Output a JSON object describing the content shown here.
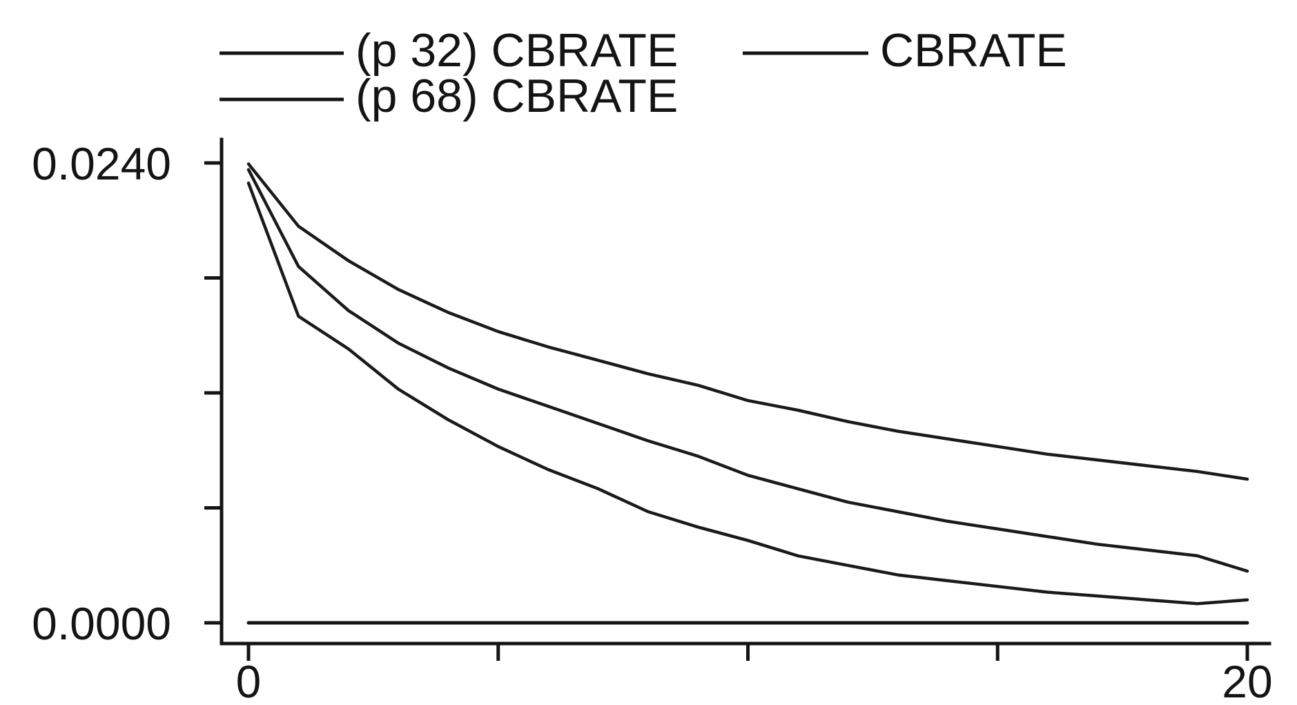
{
  "legend": {
    "items": [
      {
        "label": "(p 32) CBRATE"
      },
      {
        "label": "CBRATE"
      },
      {
        "label": "(p 68) CBRATE"
      }
    ]
  },
  "chart_data": {
    "type": "line",
    "x": [
      0,
      1,
      2,
      3,
      4,
      5,
      6,
      7,
      8,
      9,
      10,
      11,
      12,
      13,
      14,
      15,
      16,
      17,
      18,
      19,
      20
    ],
    "series": [
      {
        "name": "(p 68) CBRATE",
        "values": [
          0.02395,
          0.0207,
          0.0189,
          0.0174,
          0.0162,
          0.0152,
          0.0144,
          0.0137,
          0.013,
          0.0124,
          0.0116,
          0.0111,
          0.0105,
          0.01,
          0.0096,
          0.0092,
          0.0088,
          0.0085,
          0.0082,
          0.0079,
          0.0075
        ]
      },
      {
        "name": "CBRATE",
        "values": [
          0.02365,
          0.0186,
          0.0163,
          0.0146,
          0.0133,
          0.0122,
          0.0113,
          0.0104,
          0.0095,
          0.0087,
          0.0077,
          0.007,
          0.0063,
          0.0058,
          0.0053,
          0.0049,
          0.0045,
          0.0041,
          0.0038,
          0.0035,
          0.0027
        ]
      },
      {
        "name": "(p 32) CBRATE",
        "values": [
          0.02295,
          0.016,
          0.0143,
          0.0122,
          0.0106,
          0.0092,
          0.008,
          0.007,
          0.0058,
          0.005,
          0.0043,
          0.0035,
          0.003,
          0.0025,
          0.0022,
          0.0019,
          0.0016,
          0.0014,
          0.0012,
          0.001,
          0.0012
        ]
      },
      {
        "name": "",
        "values": [
          0,
          0,
          0,
          0,
          0,
          0,
          0,
          0,
          0,
          0,
          0,
          0,
          0,
          0,
          0,
          0,
          0,
          0,
          0,
          0,
          0
        ]
      }
    ],
    "x_ticks": [
      0,
      5,
      10,
      15,
      20
    ],
    "x_tick_labels": [
      "0",
      "",
      "",
      "",
      "20"
    ],
    "y_ticks": [
      0,
      0.006,
      0.012,
      0.018,
      0.024
    ],
    "y_tick_labels": [
      "0.0000",
      "",
      "",
      "",
      "0.0240"
    ],
    "xlim": [
      0,
      20
    ],
    "ylim": [
      0,
      0.024
    ],
    "grid": false,
    "legend_position": "top"
  }
}
